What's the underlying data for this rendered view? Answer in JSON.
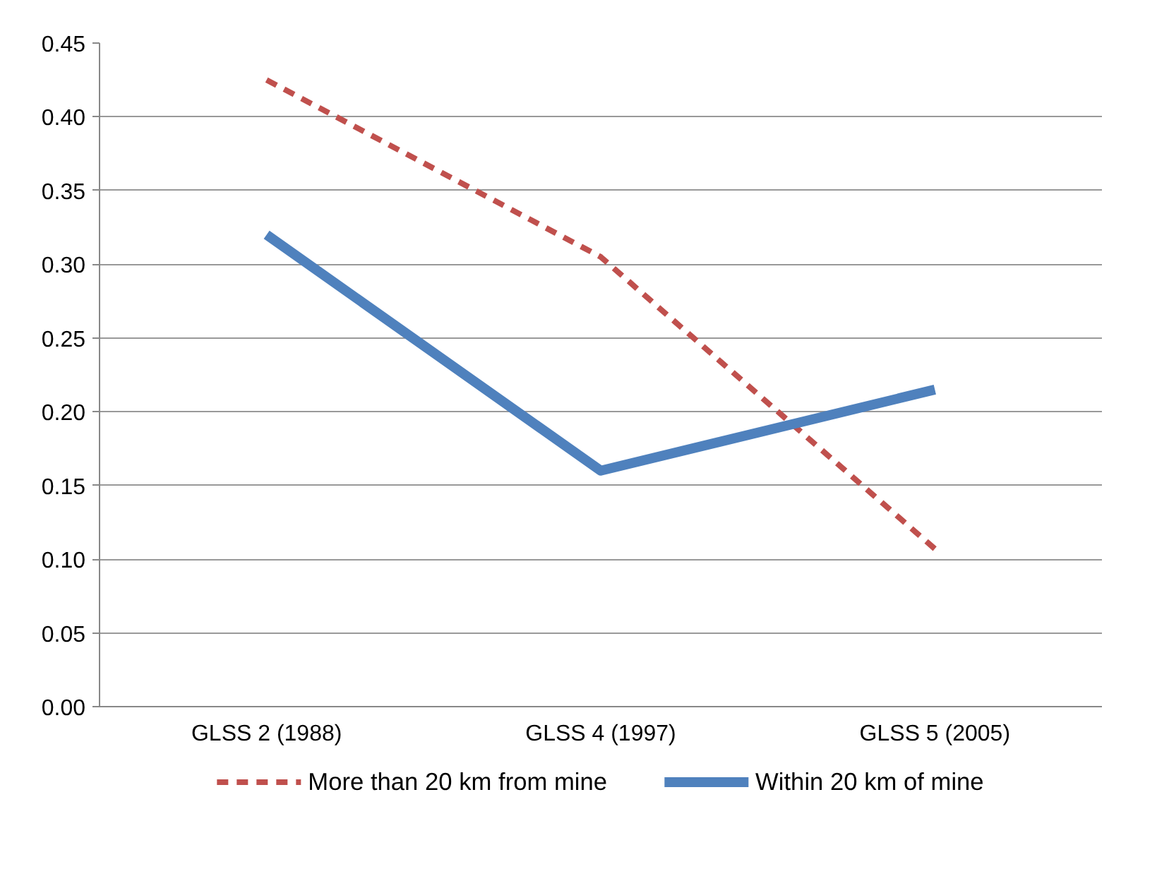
{
  "chart_data": {
    "type": "line",
    "categories": [
      "GLSS 2 (1988)",
      "GLSS 4 (1997)",
      "GLSS 5 (2005)"
    ],
    "series": [
      {
        "name": "More than 20 km from mine",
        "color": "#c0504d",
        "line_style": "dashed",
        "values": [
          0.425,
          0.305,
          0.107
        ]
      },
      {
        "name": "Within 20 km of mine",
        "color": "#4f81bd",
        "line_style": "solid",
        "values": [
          0.32,
          0.16,
          0.215
        ]
      }
    ],
    "ylim": [
      0,
      0.45
    ],
    "yticks": [
      {
        "value": 0,
        "label": "0.00"
      },
      {
        "value": 0.05,
        "label": "0.05"
      },
      {
        "value": 0.1,
        "label": "0.10"
      },
      {
        "value": 0.15,
        "label": "0.15"
      },
      {
        "value": 0.2,
        "label": "0.20"
      },
      {
        "value": 0.25,
        "label": "0.25"
      },
      {
        "value": 0.3,
        "label": "0.30"
      },
      {
        "value": 0.35,
        "label": "0.35"
      },
      {
        "value": 0.4,
        "label": "0.40"
      },
      {
        "value": 0.45,
        "label": "0.45"
      }
    ],
    "grid": "y",
    "legend": "bottom",
    "marker": "none"
  }
}
